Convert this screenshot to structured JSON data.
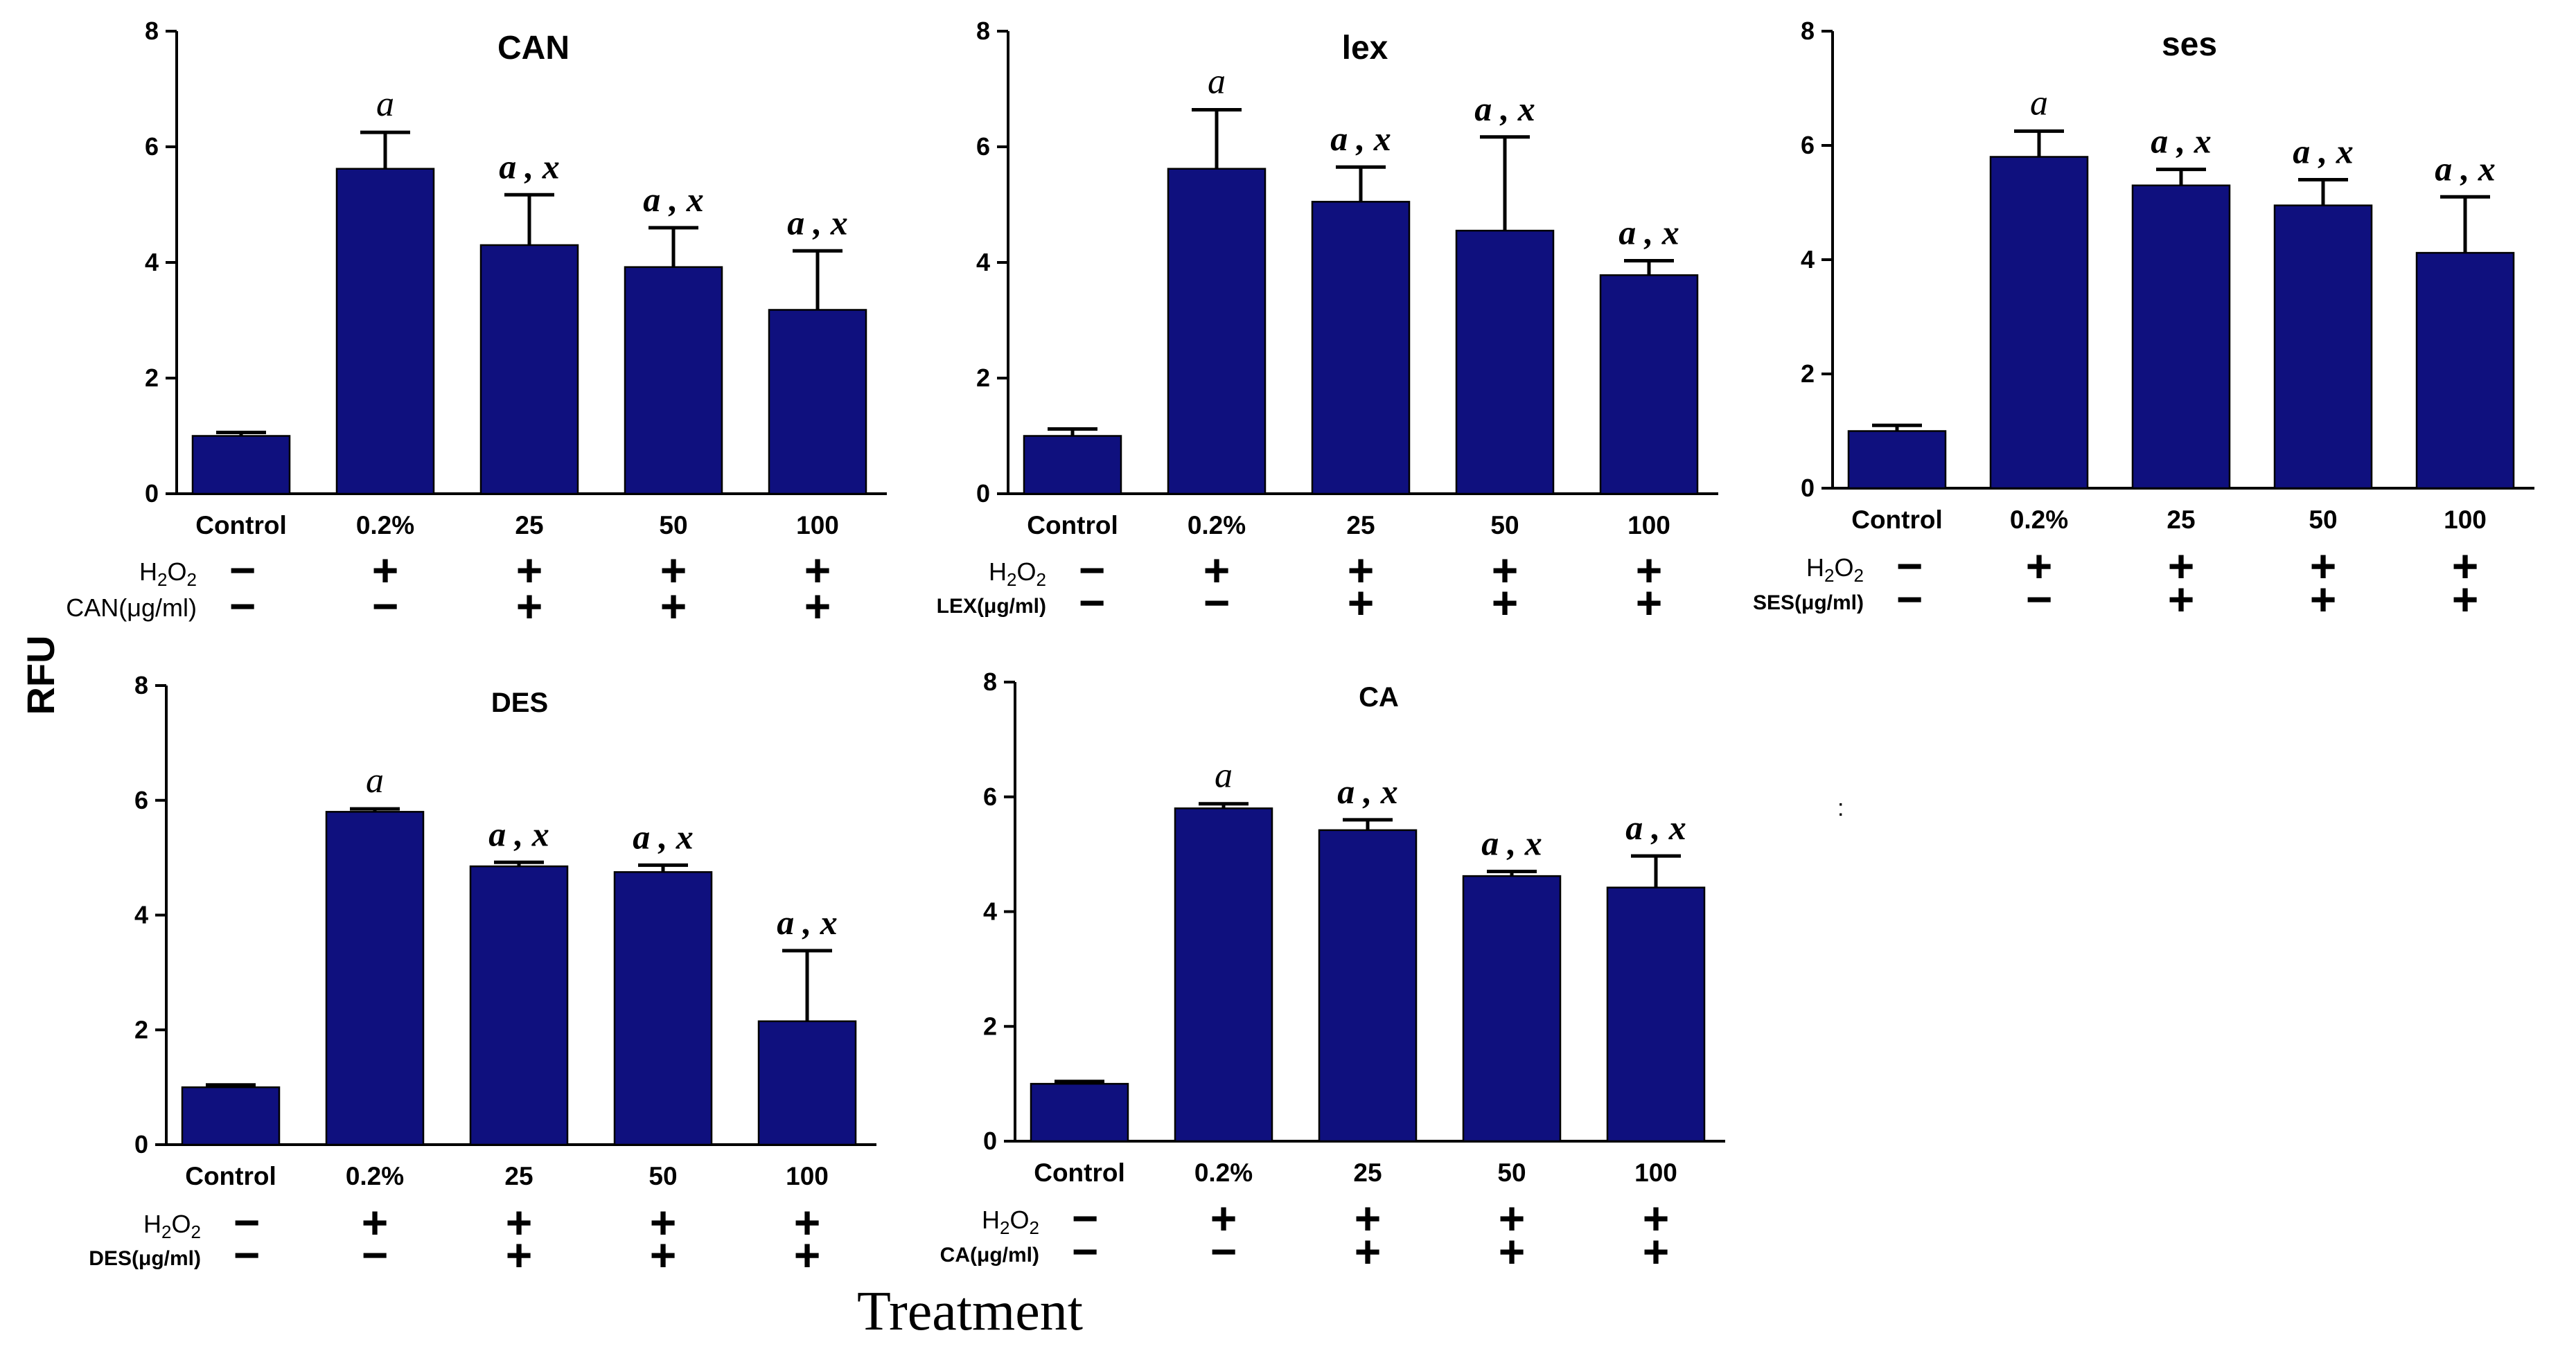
{
  "chart_data": [
    {
      "type": "bar",
      "title": "CAN",
      "categories": [
        "Control",
        "0.2%",
        "25",
        "50",
        "100"
      ],
      "values": [
        1.0,
        5.62,
        4.3,
        3.92,
        3.18
      ],
      "errors": [
        0.06,
        0.63,
        0.87,
        0.68,
        1.02
      ],
      "significance": [
        "",
        "a",
        "a , x",
        "a , x",
        "a , x"
      ],
      "ylabel": "RFU",
      "xlabel": "Treatment",
      "ylim": [
        0,
        8
      ],
      "yticks": [
        0,
        2,
        4,
        6,
        8
      ],
      "treatment_rows": [
        {
          "label": "H2O2",
          "marks": [
            "−",
            "+",
            "+",
            "+",
            "+"
          ]
        },
        {
          "label": "CAN(μg/ml)",
          "marks": [
            "−",
            "−",
            "+",
            "+",
            "+"
          ]
        }
      ]
    },
    {
      "type": "bar",
      "title": "lex",
      "categories": [
        "Control",
        "0.2%",
        "25",
        "50",
        "100"
      ],
      "values": [
        1.0,
        5.62,
        5.05,
        4.55,
        3.78
      ],
      "errors": [
        0.12,
        1.02,
        0.6,
        1.62,
        0.25
      ],
      "significance": [
        "",
        "a",
        "a , x",
        "a , x",
        "a , x"
      ],
      "ylabel": "RFU",
      "xlabel": "Treatment",
      "ylim": [
        0,
        8
      ],
      "yticks": [
        0,
        2,
        4,
        6,
        8
      ],
      "treatment_rows": [
        {
          "label": "H2O2",
          "marks": [
            "−",
            "+",
            "+",
            "+",
            "+"
          ]
        },
        {
          "label": "LEX(μg/ml)",
          "marks": [
            "−",
            "−",
            "+",
            "+",
            "+"
          ]
        }
      ]
    },
    {
      "type": "bar",
      "title": "ses",
      "categories": [
        "Control",
        "0.2%",
        "25",
        "50",
        "100"
      ],
      "values": [
        1.0,
        5.8,
        5.3,
        4.95,
        4.12
      ],
      "errors": [
        0.1,
        0.45,
        0.28,
        0.45,
        0.98
      ],
      "significance": [
        "",
        "a",
        "a , x",
        "a , x",
        "a , x"
      ],
      "ylabel": "RFU",
      "xlabel": "Treatment",
      "ylim": [
        0,
        8
      ],
      "yticks": [
        0,
        2,
        4,
        6,
        8
      ],
      "treatment_rows": [
        {
          "label": "H2O2",
          "marks": [
            "−",
            "+",
            "+",
            "+",
            "+"
          ]
        },
        {
          "label": "SES(μg/ml)",
          "marks": [
            "−",
            "−",
            "+",
            "+",
            "+"
          ]
        }
      ]
    },
    {
      "type": "bar",
      "title": "DES",
      "categories": [
        "Control",
        "0.2%",
        "25",
        "50",
        "100"
      ],
      "values": [
        1.0,
        5.8,
        4.85,
        4.75,
        2.15
      ],
      "errors": [
        0.04,
        0.05,
        0.07,
        0.12,
        1.23
      ],
      "significance": [
        "",
        "a",
        "a , x",
        "a , x",
        "a , x"
      ],
      "ylabel": "RFU",
      "xlabel": "Treatment",
      "ylim": [
        0,
        8
      ],
      "yticks": [
        0,
        2,
        4,
        6,
        8
      ],
      "treatment_rows": [
        {
          "label": "H2O2",
          "marks": [
            "−",
            "+",
            "+",
            "+",
            "+"
          ]
        },
        {
          "label": "DES(μg/ml)",
          "marks": [
            "−",
            "−",
            "+",
            "+",
            "+"
          ]
        }
      ]
    },
    {
      "type": "bar",
      "title": "CA",
      "categories": [
        "Control",
        "0.2%",
        "25",
        "50",
        "100"
      ],
      "values": [
        1.0,
        5.8,
        5.42,
        4.62,
        4.42
      ],
      "errors": [
        0.04,
        0.08,
        0.18,
        0.08,
        0.55
      ],
      "significance": [
        "",
        "a",
        "a , x",
        "a , x",
        "a , x"
      ],
      "ylabel": "RFU",
      "xlabel": "Treatment",
      "ylim": [
        0,
        8
      ],
      "yticks": [
        0,
        2,
        4,
        6,
        8
      ],
      "treatment_rows": [
        {
          "label": "H2O2",
          "marks": [
            "−",
            "+",
            "+",
            "+",
            "+"
          ]
        },
        {
          "label": "CA(μg/ml)",
          "marks": [
            "−",
            "−",
            "+",
            "+",
            "+"
          ]
        }
      ]
    }
  ],
  "figure": {
    "ylabel": "RFU",
    "xlabel": "Treatment",
    "bar_color": "#0f107e",
    "stray_mark": ":"
  }
}
